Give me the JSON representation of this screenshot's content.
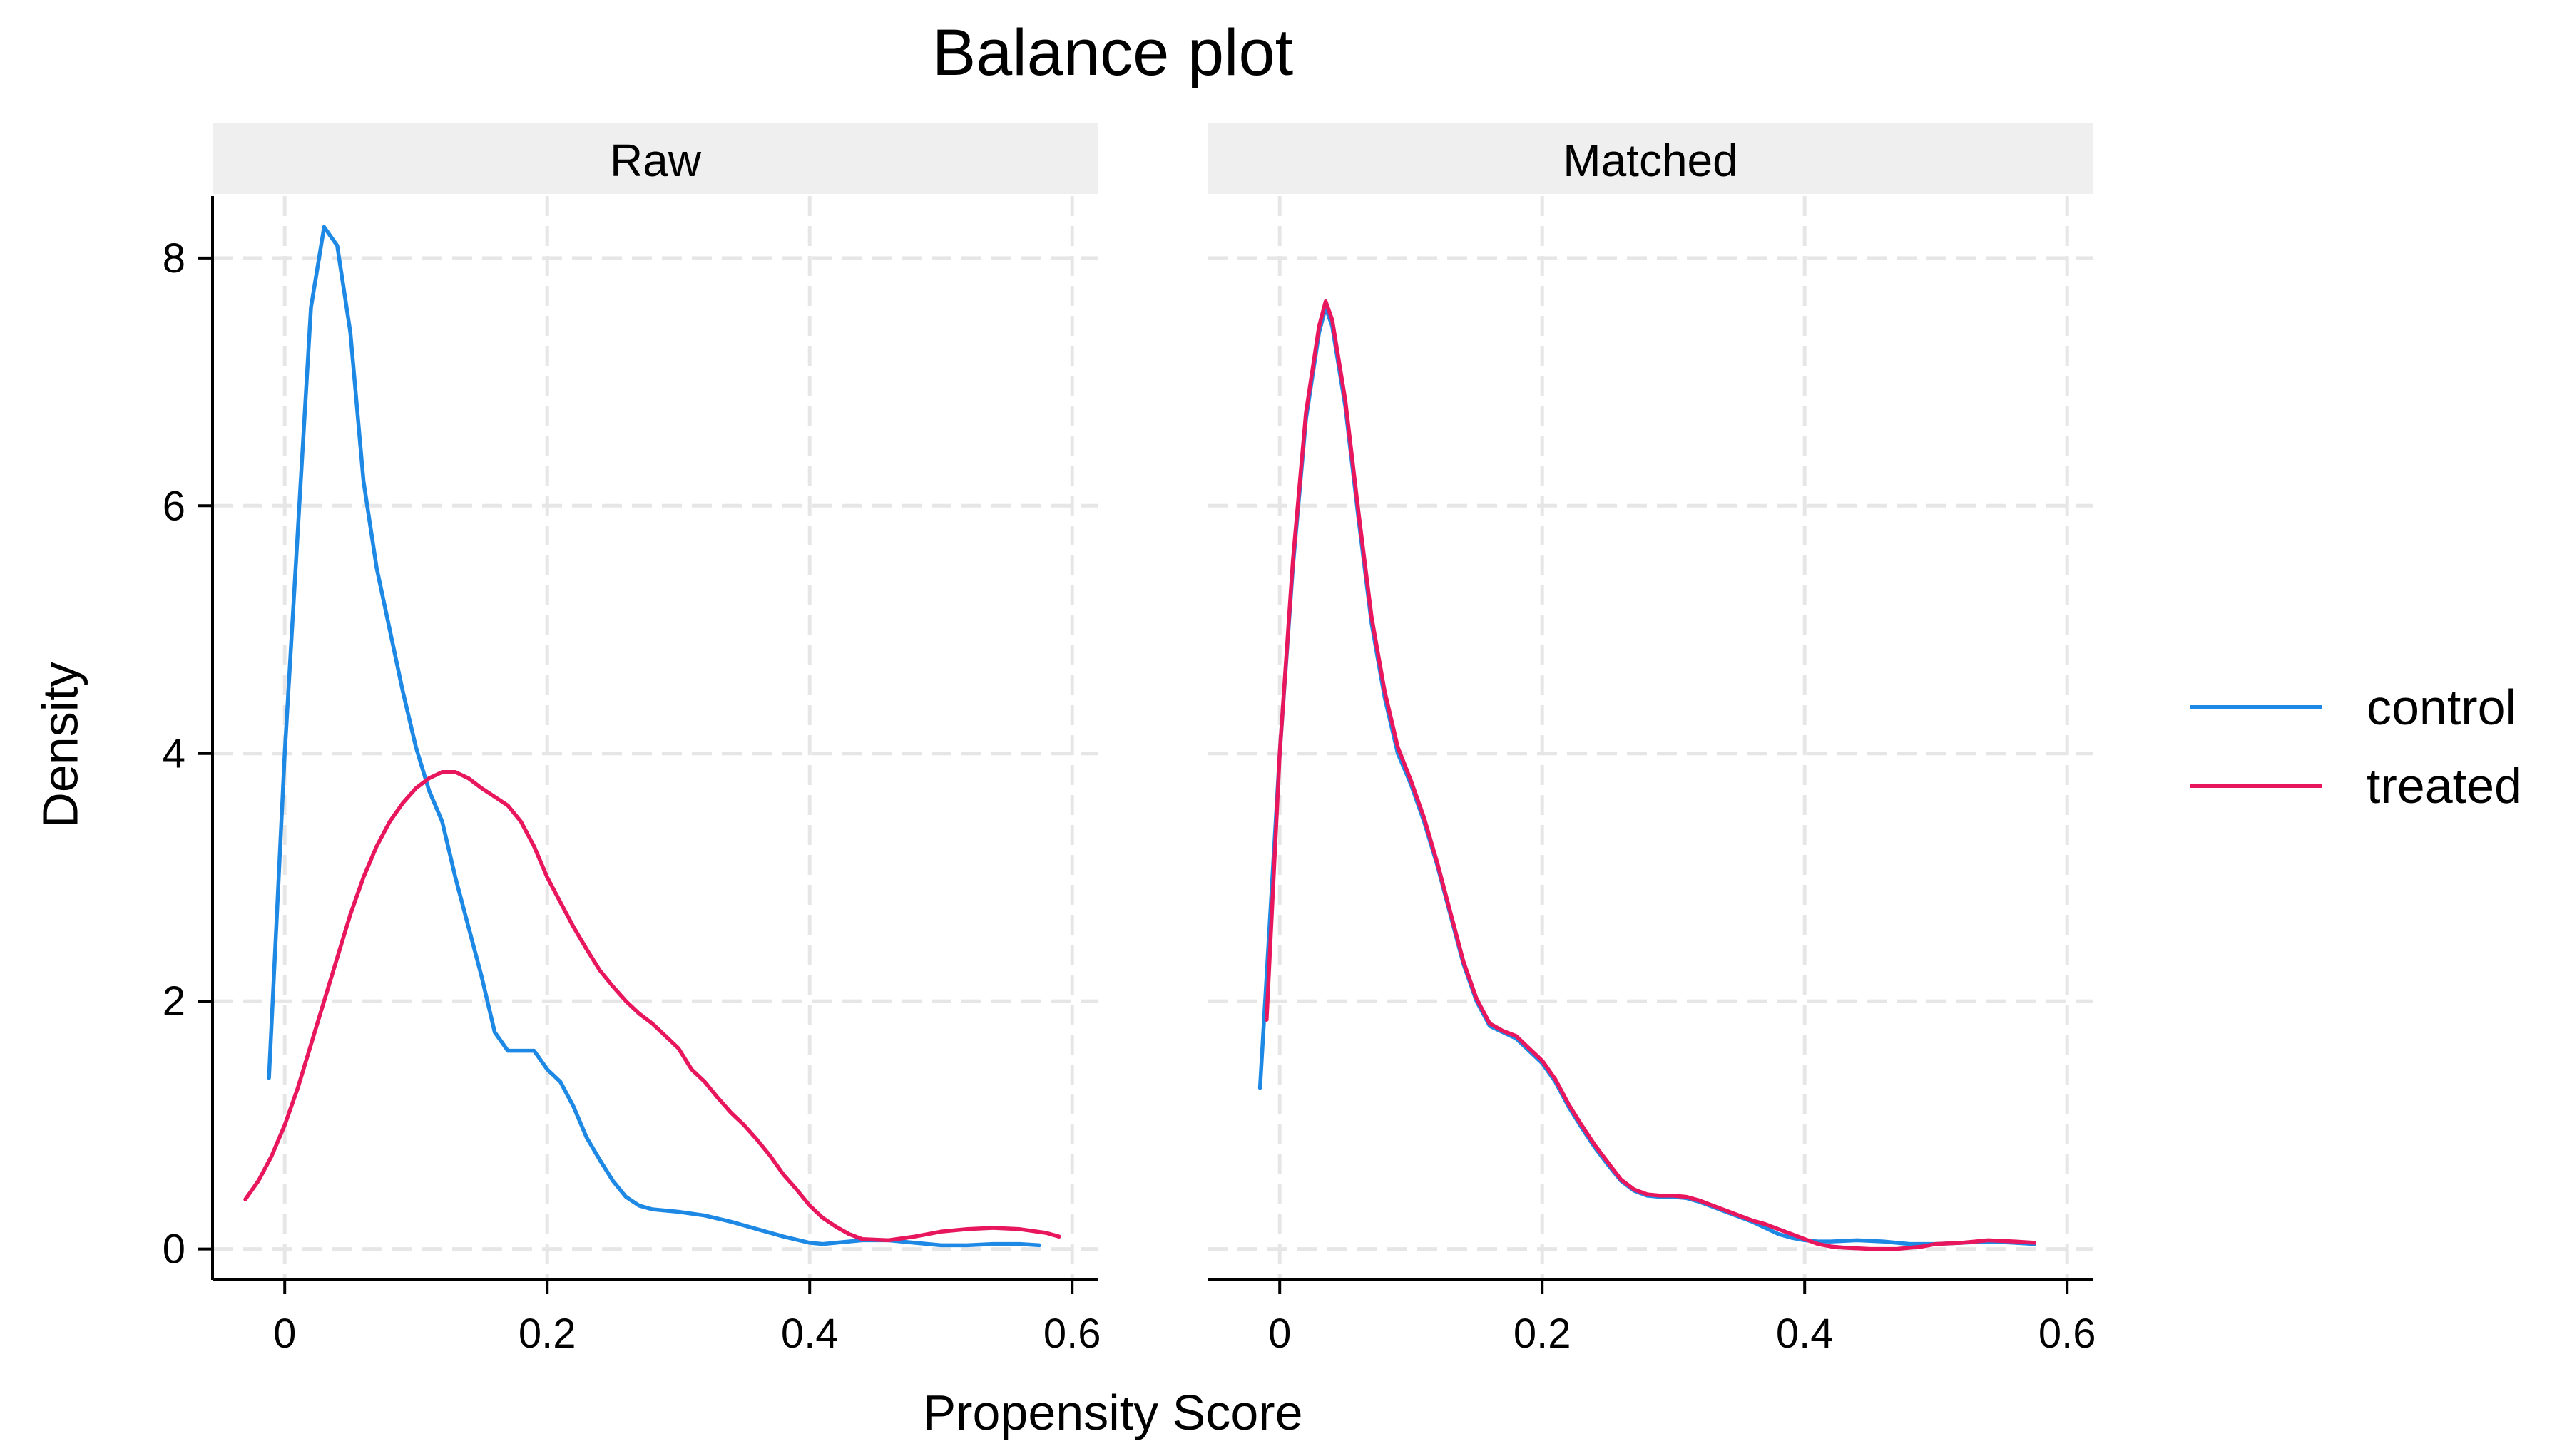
{
  "chart_data": {
    "type": "line",
    "title": "Balance plot",
    "xlabel": "Propensity Score",
    "ylabel": "Density",
    "xlim": [
      -0.055,
      0.62
    ],
    "ylim": [
      -0.25,
      8.5
    ],
    "x_ticks": [
      0,
      0.2,
      0.4,
      0.6
    ],
    "x_tick_labels": [
      "0",
      "0.2",
      "0.4",
      "0.6"
    ],
    "y_ticks": [
      0,
      2,
      4,
      6,
      8
    ],
    "y_tick_labels": [
      "0",
      "2",
      "4",
      "6",
      "8"
    ],
    "grid": true,
    "legend": {
      "position": "right",
      "entries": [
        {
          "name": "control",
          "color": "#1e88e5"
        },
        {
          "name": "treated",
          "color": "#e8175d"
        }
      ]
    },
    "panels": [
      {
        "label": "Raw",
        "series": [
          {
            "name": "control",
            "color": "#1e88e5",
            "points": [
              [
                -0.012,
                1.38
              ],
              [
                0.0,
                4.0
              ],
              [
                0.01,
                5.8
              ],
              [
                0.02,
                7.6
              ],
              [
                0.03,
                8.25
              ],
              [
                0.04,
                8.1
              ],
              [
                0.05,
                7.4
              ],
              [
                0.06,
                6.2
              ],
              [
                0.07,
                5.5
              ],
              [
                0.08,
                5.0
              ],
              [
                0.09,
                4.5
              ],
              [
                0.1,
                4.05
              ],
              [
                0.11,
                3.7
              ],
              [
                0.12,
                3.45
              ],
              [
                0.13,
                3.0
              ],
              [
                0.14,
                2.6
              ],
              [
                0.15,
                2.2
              ],
              [
                0.16,
                1.75
              ],
              [
                0.17,
                1.6
              ],
              [
                0.18,
                1.6
              ],
              [
                0.19,
                1.6
              ],
              [
                0.2,
                1.45
              ],
              [
                0.21,
                1.35
              ],
              [
                0.22,
                1.15
              ],
              [
                0.23,
                0.9
              ],
              [
                0.24,
                0.72
              ],
              [
                0.25,
                0.55
              ],
              [
                0.26,
                0.42
              ],
              [
                0.27,
                0.35
              ],
              [
                0.28,
                0.32
              ],
              [
                0.3,
                0.3
              ],
              [
                0.32,
                0.27
              ],
              [
                0.34,
                0.22
              ],
              [
                0.36,
                0.16
              ],
              [
                0.38,
                0.1
              ],
              [
                0.4,
                0.05
              ],
              [
                0.41,
                0.04
              ],
              [
                0.42,
                0.05
              ],
              [
                0.44,
                0.07
              ],
              [
                0.46,
                0.07
              ],
              [
                0.48,
                0.05
              ],
              [
                0.5,
                0.03
              ],
              [
                0.52,
                0.03
              ],
              [
                0.54,
                0.04
              ],
              [
                0.56,
                0.04
              ],
              [
                0.575,
                0.03
              ]
            ]
          },
          {
            "name": "treated",
            "color": "#e8175d",
            "points": [
              [
                -0.03,
                0.4
              ],
              [
                -0.02,
                0.55
              ],
              [
                -0.01,
                0.75
              ],
              [
                0.0,
                1.0
              ],
              [
                0.01,
                1.3
              ],
              [
                0.02,
                1.65
              ],
              [
                0.03,
                2.0
              ],
              [
                0.04,
                2.35
              ],
              [
                0.05,
                2.7
              ],
              [
                0.06,
                3.0
              ],
              [
                0.07,
                3.25
              ],
              [
                0.08,
                3.45
              ],
              [
                0.09,
                3.6
              ],
              [
                0.1,
                3.72
              ],
              [
                0.11,
                3.8
              ],
              [
                0.12,
                3.85
              ],
              [
                0.13,
                3.85
              ],
              [
                0.14,
                3.8
              ],
              [
                0.15,
                3.72
              ],
              [
                0.16,
                3.65
              ],
              [
                0.17,
                3.58
              ],
              [
                0.18,
                3.45
              ],
              [
                0.19,
                3.25
              ],
              [
                0.2,
                3.0
              ],
              [
                0.21,
                2.8
              ],
              [
                0.22,
                2.6
              ],
              [
                0.23,
                2.42
              ],
              [
                0.24,
                2.25
              ],
              [
                0.25,
                2.12
              ],
              [
                0.26,
                2.0
              ],
              [
                0.27,
                1.9
              ],
              [
                0.28,
                1.82
              ],
              [
                0.29,
                1.72
              ],
              [
                0.3,
                1.62
              ],
              [
                0.31,
                1.45
              ],
              [
                0.32,
                1.35
              ],
              [
                0.33,
                1.22
              ],
              [
                0.34,
                1.1
              ],
              [
                0.35,
                1.0
              ],
              [
                0.36,
                0.88
              ],
              [
                0.37,
                0.75
              ],
              [
                0.38,
                0.6
              ],
              [
                0.39,
                0.48
              ],
              [
                0.4,
                0.35
              ],
              [
                0.41,
                0.25
              ],
              [
                0.42,
                0.18
              ],
              [
                0.43,
                0.12
              ],
              [
                0.44,
                0.08
              ],
              [
                0.46,
                0.07
              ],
              [
                0.48,
                0.1
              ],
              [
                0.5,
                0.14
              ],
              [
                0.52,
                0.16
              ],
              [
                0.54,
                0.17
              ],
              [
                0.56,
                0.16
              ],
              [
                0.58,
                0.13
              ],
              [
                0.59,
                0.1
              ]
            ]
          }
        ]
      },
      {
        "label": "Matched",
        "series": [
          {
            "name": "control",
            "color": "#1e88e5",
            "points": [
              [
                -0.015,
                1.3
              ],
              [
                -0.01,
                2.2
              ],
              [
                0.0,
                4.0
              ],
              [
                0.01,
                5.5
              ],
              [
                0.02,
                6.7
              ],
              [
                0.03,
                7.4
              ],
              [
                0.035,
                7.6
              ],
              [
                0.04,
                7.45
              ],
              [
                0.05,
                6.8
              ],
              [
                0.06,
                5.9
              ],
              [
                0.07,
                5.05
              ],
              [
                0.08,
                4.45
              ],
              [
                0.09,
                4.0
              ],
              [
                0.1,
                3.75
              ],
              [
                0.11,
                3.45
              ],
              [
                0.12,
                3.1
              ],
              [
                0.13,
                2.7
              ],
              [
                0.14,
                2.3
              ],
              [
                0.15,
                2.0
              ],
              [
                0.16,
                1.8
              ],
              [
                0.17,
                1.75
              ],
              [
                0.18,
                1.7
              ],
              [
                0.19,
                1.6
              ],
              [
                0.2,
                1.5
              ],
              [
                0.21,
                1.35
              ],
              [
                0.22,
                1.15
              ],
              [
                0.23,
                0.98
              ],
              [
                0.24,
                0.82
              ],
              [
                0.25,
                0.68
              ],
              [
                0.26,
                0.55
              ],
              [
                0.27,
                0.47
              ],
              [
                0.28,
                0.43
              ],
              [
                0.29,
                0.42
              ],
              [
                0.3,
                0.42
              ],
              [
                0.31,
                0.41
              ],
              [
                0.32,
                0.38
              ],
              [
                0.33,
                0.34
              ],
              [
                0.34,
                0.3
              ],
              [
                0.35,
                0.26
              ],
              [
                0.36,
                0.22
              ],
              [
                0.37,
                0.17
              ],
              [
                0.38,
                0.12
              ],
              [
                0.39,
                0.09
              ],
              [
                0.4,
                0.07
              ],
              [
                0.41,
                0.06
              ],
              [
                0.42,
                0.06
              ],
              [
                0.44,
                0.07
              ],
              [
                0.46,
                0.06
              ],
              [
                0.48,
                0.04
              ],
              [
                0.5,
                0.04
              ],
              [
                0.52,
                0.05
              ],
              [
                0.54,
                0.06
              ],
              [
                0.56,
                0.05
              ],
              [
                0.575,
                0.04
              ]
            ]
          },
          {
            "name": "treated",
            "color": "#e8175d",
            "points": [
              [
                -0.01,
                1.85
              ],
              [
                0.0,
                4.0
              ],
              [
                0.01,
                5.55
              ],
              [
                0.02,
                6.75
              ],
              [
                0.03,
                7.45
              ],
              [
                0.035,
                7.65
              ],
              [
                0.04,
                7.5
              ],
              [
                0.05,
                6.85
              ],
              [
                0.06,
                5.95
              ],
              [
                0.07,
                5.1
              ],
              [
                0.08,
                4.5
              ],
              [
                0.09,
                4.05
              ],
              [
                0.1,
                3.78
              ],
              [
                0.11,
                3.48
              ],
              [
                0.12,
                3.12
              ],
              [
                0.13,
                2.72
              ],
              [
                0.14,
                2.32
              ],
              [
                0.15,
                2.02
              ],
              [
                0.16,
                1.82
              ],
              [
                0.17,
                1.76
              ],
              [
                0.18,
                1.72
              ],
              [
                0.19,
                1.62
              ],
              [
                0.2,
                1.52
              ],
              [
                0.21,
                1.37
              ],
              [
                0.22,
                1.17
              ],
              [
                0.23,
                1.0
              ],
              [
                0.24,
                0.84
              ],
              [
                0.25,
                0.7
              ],
              [
                0.26,
                0.56
              ],
              [
                0.27,
                0.48
              ],
              [
                0.28,
                0.44
              ],
              [
                0.29,
                0.43
              ],
              [
                0.3,
                0.43
              ],
              [
                0.31,
                0.42
              ],
              [
                0.32,
                0.39
              ],
              [
                0.33,
                0.35
              ],
              [
                0.34,
                0.31
              ],
              [
                0.35,
                0.27
              ],
              [
                0.36,
                0.23
              ],
              [
                0.37,
                0.2
              ],
              [
                0.38,
                0.16
              ],
              [
                0.39,
                0.12
              ],
              [
                0.4,
                0.08
              ],
              [
                0.41,
                0.04
              ],
              [
                0.42,
                0.02
              ],
              [
                0.43,
                0.01
              ],
              [
                0.45,
                0.0
              ],
              [
                0.47,
                0.0
              ],
              [
                0.49,
                0.02
              ],
              [
                0.5,
                0.04
              ],
              [
                0.52,
                0.05
              ],
              [
                0.54,
                0.07
              ],
              [
                0.56,
                0.06
              ],
              [
                0.575,
                0.05
              ]
            ]
          }
        ]
      }
    ]
  }
}
